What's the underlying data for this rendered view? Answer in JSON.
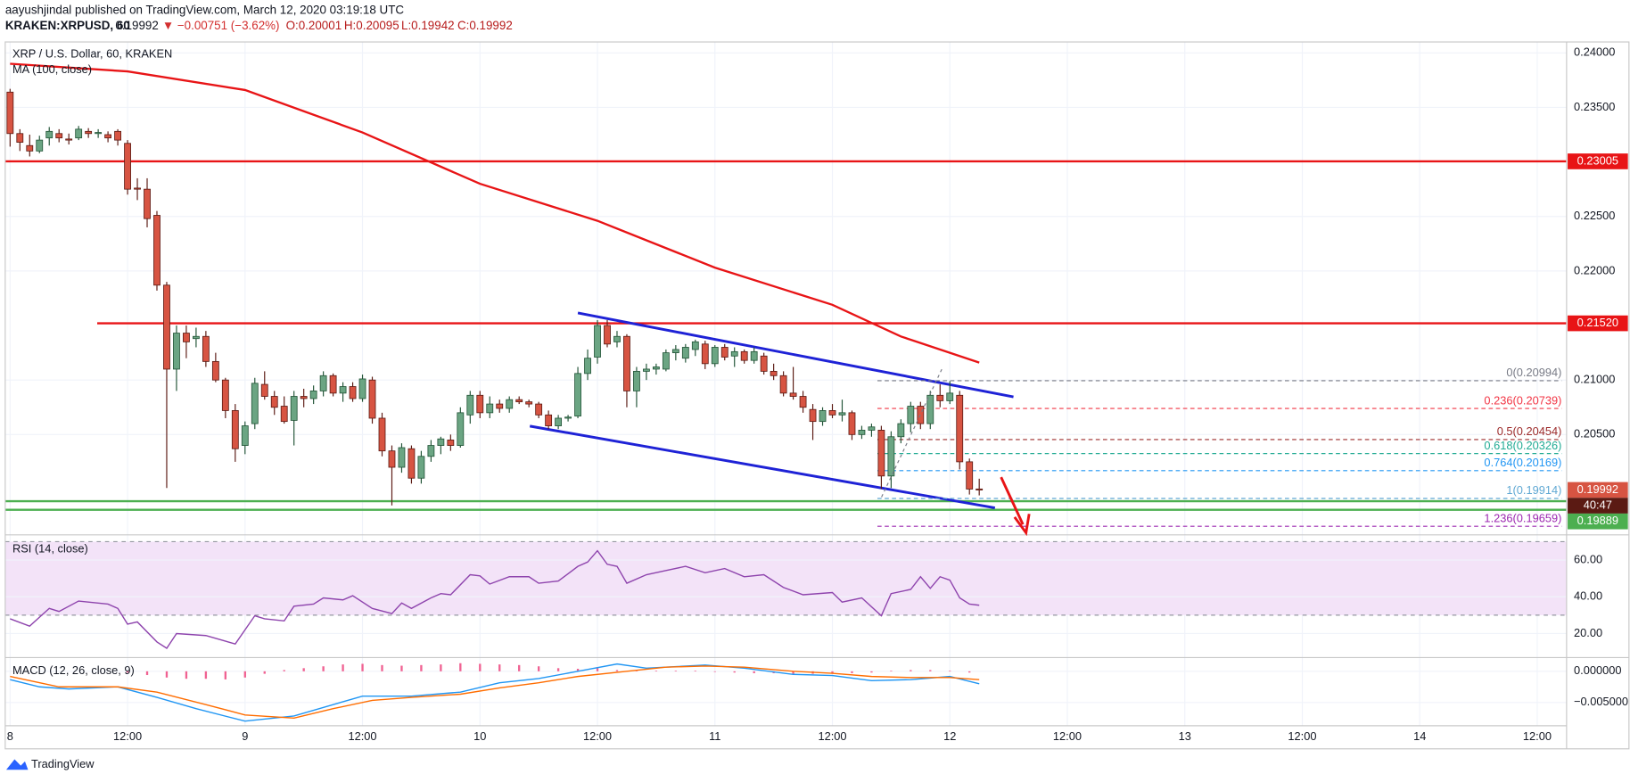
{
  "header": {
    "author_line": "aayushjindal published on TradingView.com, March 12, 2020 03:19:18 UTC",
    "symbol": "KRAKEN:XRPUSD, 60",
    "last": "0.19992",
    "change": "▼ −0.00751 (−3.62%)",
    "open": "O:0.20001",
    "high": "H:0.20095",
    "low": "L:0.19942",
    "close": "C:0.19992"
  },
  "footer": {
    "logo": "TradingView"
  },
  "chart_data": [
    {
      "type": "candlestick",
      "title": "XRP / U.S. Dollar, 60, KRAKEN",
      "up_color": "#6ba583",
      "down_color": "#d75442",
      "grid": true,
      "xlim": [
        -0.5,
        159
      ],
      "xticks": [
        {
          "value": 0,
          "label": "8"
        },
        {
          "value": 12,
          "label": "12:00"
        },
        {
          "value": 24,
          "label": "9"
        },
        {
          "value": 36,
          "label": "12:00"
        },
        {
          "value": 48,
          "label": "10"
        },
        {
          "value": 60,
          "label": "12:00"
        },
        {
          "value": 72,
          "label": "11"
        },
        {
          "value": 84,
          "label": "12:00"
        },
        {
          "value": 96,
          "label": "12"
        },
        {
          "value": 108,
          "label": "12:00"
        },
        {
          "value": 120,
          "label": "13"
        },
        {
          "value": 132,
          "label": "12:00"
        },
        {
          "value": 144,
          "label": "14"
        },
        {
          "value": 156,
          "label": "12:00"
        }
      ],
      "ylim": [
        0.1958,
        0.241
      ],
      "yticks": [
        {
          "value": 0.24,
          "label": "0.24000"
        },
        {
          "value": 0.235,
          "label": "0.23500"
        },
        {
          "value": 0.225,
          "label": "0.22500"
        },
        {
          "value": 0.22,
          "label": "0.22000"
        },
        {
          "value": 0.21,
          "label": "0.21000"
        },
        {
          "value": 0.205,
          "label": "0.20500"
        }
      ],
      "x": [
        0,
        1,
        2,
        3,
        4,
        5,
        6,
        7,
        8,
        9,
        10,
        11,
        12,
        13,
        14,
        15,
        16,
        17,
        18,
        19,
        20,
        21,
        22,
        23,
        24,
        25,
        26,
        27,
        28,
        29,
        30,
        31,
        32,
        33,
        34,
        35,
        36,
        37,
        38,
        39,
        40,
        41,
        42,
        43,
        44,
        45,
        46,
        47,
        48,
        49,
        50,
        51,
        52,
        53,
        54,
        55,
        56,
        57,
        58,
        59,
        60,
        61,
        62,
        63,
        64,
        65,
        66,
        67,
        68,
        69,
        70,
        71,
        72,
        73,
        74,
        75,
        76,
        77,
        78,
        79,
        80,
        81,
        82,
        83,
        84,
        85,
        86,
        87,
        88,
        89,
        90,
        91,
        92,
        93,
        94,
        95,
        96,
        97,
        98,
        99
      ],
      "open": [
        0.2364,
        0.2326,
        0.2315,
        0.231,
        0.2322,
        0.2326,
        0.2321,
        0.2322,
        0.2328,
        0.2326,
        0.2325,
        0.2328,
        0.2317,
        0.2276,
        0.2275,
        0.2251,
        0.2187,
        0.211,
        0.2143,
        0.2138,
        0.214,
        0.2117,
        0.21,
        0.2072,
        0.204,
        0.206,
        0.2096,
        0.2085,
        0.2076,
        0.2063,
        0.2085,
        0.2083,
        0.209,
        0.2104,
        0.2088,
        0.2094,
        0.2083,
        0.21,
        0.2065,
        0.2035,
        0.202,
        0.2037,
        0.201,
        0.203,
        0.204,
        0.2045,
        0.204,
        0.2068,
        0.2086,
        0.207,
        0.2078,
        0.2074,
        0.2082,
        0.208,
        0.2078,
        0.2068,
        0.2058,
        0.2065,
        0.2067,
        0.2106,
        0.2121,
        0.215,
        0.2135,
        0.214,
        0.209,
        0.2108,
        0.211,
        0.211,
        0.2125,
        0.212,
        0.2128,
        0.2133,
        0.2115,
        0.213,
        0.2122,
        0.2126,
        0.2118,
        0.2122,
        0.2108,
        0.2104,
        0.2088,
        0.2085,
        0.2073,
        0.2062,
        0.2072,
        0.2068,
        0.207,
        0.205,
        0.2054,
        0.2054,
        0.2012,
        0.2048,
        0.206,
        0.2076,
        0.206,
        0.2086,
        0.2081,
        0.2086,
        0.2025,
        0.20001
      ],
      "high": [
        0.2367,
        0.233,
        0.2325,
        0.2324,
        0.2332,
        0.233,
        0.2326,
        0.2333,
        0.2331,
        0.233,
        0.2328,
        0.233,
        0.232,
        0.2285,
        0.2285,
        0.2255,
        0.219,
        0.215,
        0.215,
        0.2148,
        0.2145,
        0.2125,
        0.2102,
        0.2078,
        0.2062,
        0.2102,
        0.2108,
        0.209,
        0.2085,
        0.209,
        0.2092,
        0.2095,
        0.2108,
        0.2106,
        0.2098,
        0.2098,
        0.2105,
        0.2103,
        0.207,
        0.204,
        0.2042,
        0.204,
        0.2035,
        0.2045,
        0.2048,
        0.205,
        0.2075,
        0.209,
        0.209,
        0.2085,
        0.2082,
        0.2085,
        0.2085,
        0.2082,
        0.208,
        0.2072,
        0.2068,
        0.2068,
        0.2112,
        0.2128,
        0.2155,
        0.2155,
        0.2145,
        0.2142,
        0.2112,
        0.2115,
        0.2115,
        0.2128,
        0.2132,
        0.2133,
        0.2137,
        0.2136,
        0.2132,
        0.2133,
        0.213,
        0.2128,
        0.213,
        0.2125,
        0.2115,
        0.2108,
        0.2112,
        0.209,
        0.2078,
        0.2075,
        0.2078,
        0.2082,
        0.2072,
        0.2058,
        0.206,
        0.2058,
        0.2053,
        0.2064,
        0.208,
        0.208,
        0.209,
        0.2096,
        0.2099,
        0.209,
        0.2028,
        0.20095
      ],
      "low": [
        0.2314,
        0.231,
        0.2305,
        0.2308,
        0.2315,
        0.2318,
        0.2316,
        0.232,
        0.2322,
        0.2322,
        0.2318,
        0.2315,
        0.227,
        0.2265,
        0.224,
        0.2182,
        0.2001,
        0.209,
        0.212,
        0.213,
        0.2112,
        0.2098,
        0.2065,
        0.2025,
        0.2032,
        0.2055,
        0.2082,
        0.2068,
        0.206,
        0.204,
        0.2075,
        0.2078,
        0.2085,
        0.2085,
        0.208,
        0.208,
        0.208,
        0.206,
        0.203,
        0.1985,
        0.2015,
        0.2005,
        0.2005,
        0.2025,
        0.2032,
        0.2035,
        0.2038,
        0.206,
        0.2065,
        0.2065,
        0.207,
        0.207,
        0.2078,
        0.2075,
        0.2065,
        0.2055,
        0.2055,
        0.2062,
        0.2065,
        0.21,
        0.2115,
        0.213,
        0.213,
        0.2075,
        0.2075,
        0.21,
        0.2105,
        0.2108,
        0.2118,
        0.2116,
        0.2122,
        0.211,
        0.2112,
        0.2118,
        0.2112,
        0.2115,
        0.2115,
        0.2105,
        0.21,
        0.2085,
        0.2082,
        0.207,
        0.2045,
        0.2058,
        0.2065,
        0.2062,
        0.2045,
        0.2046,
        0.2048,
        0.2,
        0.2001,
        0.2042,
        0.2052,
        0.2055,
        0.2055,
        0.2075,
        0.2078,
        0.2018,
        0.1995,
        0.19942
      ],
      "close": [
        0.2326,
        0.2318,
        0.231,
        0.232,
        0.2328,
        0.2322,
        0.232,
        0.233,
        0.2326,
        0.2327,
        0.2322,
        0.232,
        0.2275,
        0.2275,
        0.2248,
        0.2187,
        0.211,
        0.2143,
        0.2135,
        0.214,
        0.2117,
        0.21,
        0.2072,
        0.2037,
        0.2058,
        0.2097,
        0.2085,
        0.2075,
        0.2062,
        0.2085,
        0.2083,
        0.209,
        0.2104,
        0.2088,
        0.2094,
        0.2083,
        0.2101,
        0.2065,
        0.2035,
        0.202,
        0.2038,
        0.201,
        0.203,
        0.204,
        0.2046,
        0.204,
        0.207,
        0.2086,
        0.207,
        0.2078,
        0.2074,
        0.2082,
        0.208,
        0.2078,
        0.2068,
        0.2058,
        0.2065,
        0.2066,
        0.2106,
        0.212,
        0.215,
        0.2133,
        0.214,
        0.209,
        0.2108,
        0.211,
        0.2112,
        0.2125,
        0.2128,
        0.213,
        0.2135,
        0.2115,
        0.213,
        0.2121,
        0.2126,
        0.2118,
        0.2126,
        0.2108,
        0.2104,
        0.2088,
        0.2085,
        0.2075,
        0.2062,
        0.2072,
        0.2068,
        0.207,
        0.205,
        0.2054,
        0.2057,
        0.2012,
        0.2048,
        0.206,
        0.2076,
        0.206,
        0.2086,
        0.2081,
        0.2088,
        0.2025,
        0.2,
        0.19992
      ],
      "ma": {
        "name": "MA (100, close)",
        "color": "#e81416",
        "x": [
          0,
          12,
          24,
          36,
          48,
          60,
          72,
          84,
          91,
          99
        ],
        "values": [
          0.239,
          0.2383,
          0.2366,
          0.2327,
          0.228,
          0.2246,
          0.2203,
          0.2169,
          0.214,
          0.2116
        ]
      },
      "hlines": [
        {
          "price": 0.23005,
          "label": "0.23005",
          "start": -0.5,
          "color": "#e81416"
        },
        {
          "price": 0.2152,
          "label": "0.21520",
          "start": 8.9,
          "color": "#e81416"
        },
        {
          "price": 0.19889,
          "label": "0.19889",
          "start": -0.5,
          "color": "#4caf50"
        },
        {
          "price": 0.1981,
          "start": -0.5,
          "color": "#4caf50"
        }
      ],
      "trendlines": [
        {
          "x": [
            58,
            102.5
          ],
          "values": [
            0.21615,
            0.20846
          ],
          "color": "#1e22d6"
        },
        {
          "x": [
            53.1,
            100.6
          ],
          "values": [
            0.20577,
            0.19827
          ],
          "color": "#1e22d6"
        }
      ],
      "fib": {
        "x": [
          88.6,
          158.5
        ],
        "prices": [
          0.20994,
          0.20739,
          0.20454,
          0.20326,
          0.20169,
          0.19914,
          0.19659
        ],
        "labels": [
          "0(0.20994)",
          "0.236(0.20739)",
          "0.5(0.20454)",
          "0.618(0.20326)",
          "0.764(0.20169)",
          "1(0.19914)",
          "1.236(0.19659)"
        ],
        "colors": [
          "#787b86",
          "#f23645",
          "#9c2a2a",
          "#22ab94",
          "#2196f3",
          "#5fa8d3",
          "#9c27b0"
        ]
      },
      "last": {
        "price": 0.19992,
        "label": "0.19992",
        "countdown": "40:47",
        "color": "#d75442"
      }
    },
    {
      "type": "line",
      "title": "RSI (14, close)",
      "color": "#8e44ad",
      "ylim": [
        6.9,
        73.7
      ],
      "yticks": [
        {
          "value": 60,
          "label": "60.00"
        },
        {
          "value": 40,
          "label": "40.00"
        },
        {
          "value": 20,
          "label": "20.00"
        }
      ],
      "bands": [
        30,
        70
      ],
      "band_color": "#f3e3f8",
      "x": [
        0,
        2,
        4,
        5,
        7,
        10,
        11,
        12,
        13,
        15,
        16,
        17,
        20,
        23,
        25,
        26,
        28,
        29,
        31,
        32,
        34,
        35,
        37,
        39,
        40,
        41,
        43,
        44,
        45,
        47,
        48,
        49,
        51,
        53,
        54,
        56,
        58,
        59,
        60,
        61,
        62,
        63,
        65,
        67,
        69,
        71,
        73,
        75,
        77,
        79,
        81,
        84,
        85,
        87,
        89,
        90,
        92,
        93,
        94,
        95,
        96,
        97,
        98,
        99
      ],
      "values": [
        28.0,
        24.0,
        33.7,
        32.0,
        37.7,
        36.0,
        33.7,
        25.1,
        26.3,
        15.4,
        12.0,
        20.0,
        18.9,
        14.3,
        29.7,
        28.0,
        26.9,
        34.9,
        36.0,
        39.4,
        38.3,
        40.6,
        33.7,
        30.9,
        36.6,
        33.7,
        39.4,
        41.7,
        41.1,
        52.0,
        51.4,
        46.9,
        50.9,
        50.9,
        47.4,
        48.6,
        56.6,
        58.9,
        65.1,
        57.7,
        56.6,
        47.4,
        52.0,
        54.3,
        56.6,
        53.1,
        55.4,
        50.9,
        52.0,
        45.1,
        41.1,
        42.3,
        37.1,
        39.4,
        29.7,
        41.7,
        44.0,
        50.9,
        44.6,
        50.9,
        49.1,
        39.4,
        36.0,
        35.4
      ]
    },
    {
      "type": "macd",
      "title": "MACD (12, 26, close, 9)",
      "ylim": [
        -0.0084,
        0.0022
      ],
      "yticks": [
        {
          "value": 0,
          "label": "0.000000"
        },
        {
          "value": -0.005,
          "label": "−0.005000"
        }
      ],
      "histogram": {
        "color": "#f06292",
        "x": [
          12,
          14,
          16,
          18,
          20,
          22,
          24,
          26,
          28,
          30,
          32,
          34,
          36,
          38,
          40,
          42,
          44,
          46,
          48,
          50,
          52,
          54,
          56,
          58,
          60,
          62,
          64,
          66,
          68,
          70,
          72,
          74,
          76,
          78,
          80,
          82,
          84,
          86,
          88,
          90,
          92,
          94,
          96,
          98
        ],
        "values": [
          -0.0002,
          -0.0006,
          -0.001,
          -0.0012,
          -0.0012,
          -0.0013,
          -0.001,
          -0.0004,
          0.0002,
          0.0005,
          0.0008,
          0.0011,
          0.0012,
          0.001,
          0.0009,
          0.001,
          0.0011,
          0.0013,
          0.0012,
          0.0011,
          0.001,
          0.0008,
          0.0005,
          0.0004,
          0.0005,
          0.0002,
          0.0001,
          0.0001,
          0.0001,
          0.0001,
          -0.0001,
          -0.0002,
          -0.0003,
          -0.0003,
          -0.0004,
          -0.0004,
          -0.0004,
          -0.0003,
          -0.0002,
          0.0001,
          0.0002,
          0.0002,
          0.0001,
          -0.0002
        ]
      },
      "series": [
        {
          "color": "#2196f3",
          "x": [
            0,
            3,
            6,
            11,
            15,
            19,
            24,
            29,
            33,
            36,
            41,
            46,
            50,
            54,
            58,
            62,
            65,
            71,
            75,
            80,
            84,
            88,
            92,
            96,
            99
          ],
          "values": [
            -0.00133,
            -0.0025,
            -0.00283,
            -0.0025,
            -0.00417,
            -0.006,
            -0.008,
            -0.00717,
            -0.00533,
            -0.004,
            -0.004,
            -0.00333,
            -0.00183,
            -0.00117,
            0,
            0.00117,
            0.0005,
            0.001,
            0.0005,
            -0.0005,
            -0.00067,
            -0.0015,
            -0.00133,
            -0.00083,
            -0.002
          ]
        },
        {
          "color": "#ff6d00",
          "x": [
            0,
            5,
            11,
            15,
            20,
            24,
            29,
            33,
            37,
            41,
            46,
            50,
            54,
            58,
            63,
            67,
            71,
            75,
            80,
            84,
            88,
            92,
            96,
            99
          ],
          "values": [
            -0.00083,
            -0.0025,
            -0.0025,
            -0.00333,
            -0.00533,
            -0.007,
            -0.0075,
            -0.006,
            -0.00467,
            -0.00417,
            -0.00367,
            -0.00267,
            -0.00183,
            -0.00083,
            0,
            0.00067,
            0.00083,
            0.00067,
            0,
            -0.00033,
            -0.00083,
            -0.001,
            -0.001,
            -0.00133
          ]
        }
      ]
    }
  ]
}
